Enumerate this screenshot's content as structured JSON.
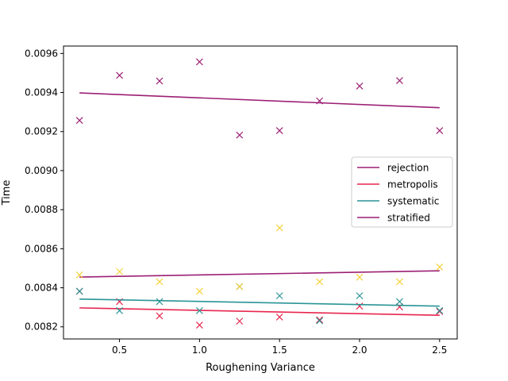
{
  "chart_data": {
    "type": "scatter",
    "xlabel": "Roughening Variance",
    "ylabel": "Time",
    "xlim": [
      0.15,
      2.61
    ],
    "ylim": [
      0.008138,
      0.009638
    ],
    "x_ticks": [
      0.5,
      1.0,
      1.5,
      2.0,
      2.5
    ],
    "x_tick_labels": [
      "0.5",
      "1.0",
      "1.5",
      "2.0",
      "2.5"
    ],
    "y_ticks": [
      0.0082,
      0.0084,
      0.0086,
      0.0088,
      0.009,
      0.0092,
      0.0094,
      0.0096
    ],
    "y_tick_labels": [
      "0.0082",
      "0.0084",
      "0.0086",
      "0.0088",
      "0.0090",
      "0.0092",
      "0.0094",
      "0.0096"
    ],
    "grid": false,
    "legend_position": "center-right",
    "x": [
      0.25,
      0.5,
      0.75,
      1.0,
      1.25,
      1.5,
      1.75,
      2.0,
      2.25,
      2.5
    ],
    "series": [
      {
        "name": "rejection",
        "color": "#9c1f74",
        "marker_color": "#9c1f74",
        "values": [
          0.009257,
          0.009488,
          0.009459,
          0.009557,
          0.009182,
          0.009205,
          0.009357,
          0.009433,
          0.009461,
          0.009205
        ],
        "fit": [
          0.009398,
          0.009322
        ]
      },
      {
        "name": "metropolis",
        "color": "#e8264e",
        "marker_color": "#e8264e",
        "values": [
          0.008382,
          0.008329,
          0.008256,
          0.008209,
          0.008229,
          0.00825,
          0.008236,
          0.008306,
          0.008302,
          0.008279
        ],
        "fit": [
          0.008297,
          0.008259
        ]
      },
      {
        "name": "systematic",
        "color": "#2a9496",
        "marker_color": "#2a9496",
        "values": [
          0.008382,
          0.008283,
          0.008329,
          0.008283,
          0.008406,
          0.008359,
          0.008231,
          0.008359,
          0.008329,
          0.008283
        ],
        "fit": [
          0.008342,
          0.008306
        ]
      },
      {
        "name": "stratified",
        "color": "#9c1f74",
        "marker_color": "#f5d23a",
        "values": [
          0.008466,
          0.008483,
          0.008431,
          0.008382,
          0.008406,
          0.008707,
          0.008431,
          0.008454,
          0.008431,
          0.008506
        ],
        "fit": [
          0.008455,
          0.008487
        ]
      }
    ]
  }
}
